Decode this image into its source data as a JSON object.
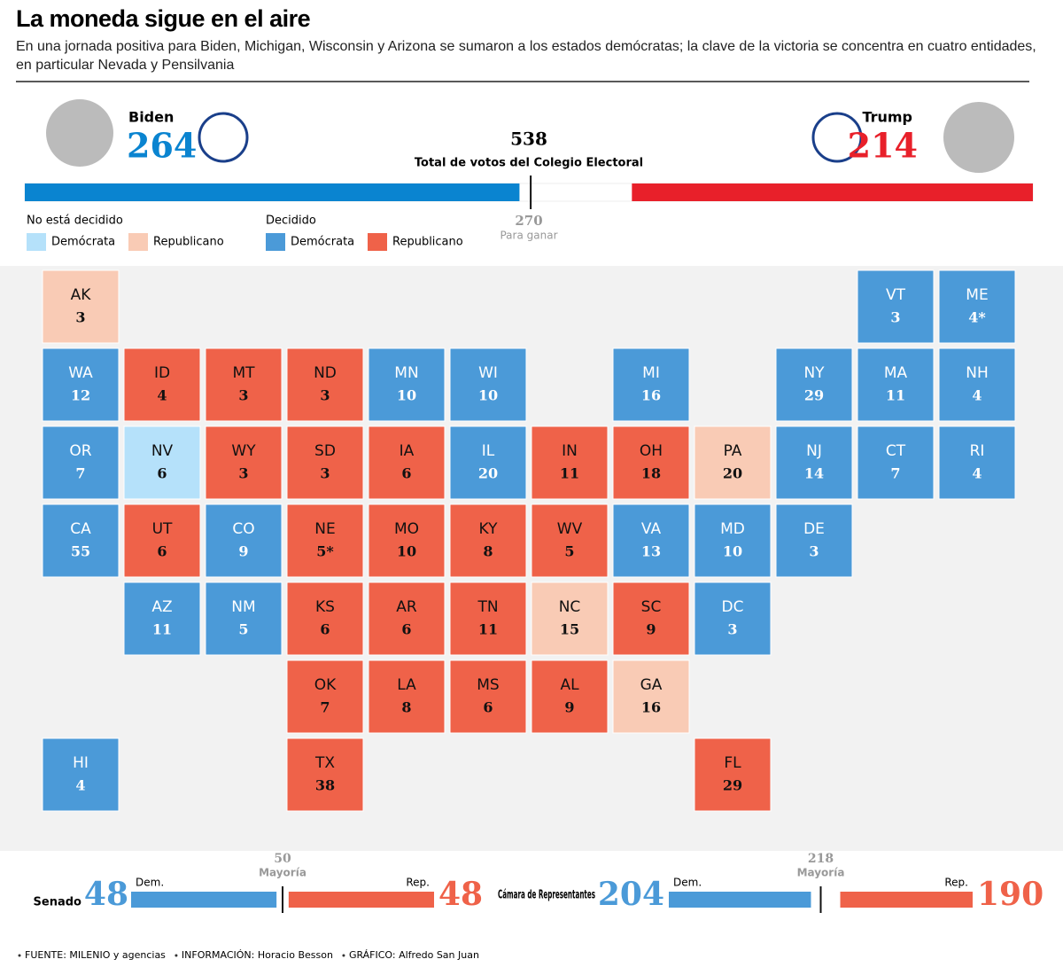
{
  "header": {
    "title": "La moneda sigue en el aire",
    "subtitle": "En una jornada positiva para Biden, Michigan, Wisconsin y Arizona se sumaron a los estados demócratas; la clave de la victoria se concentra en cuatro entidades, en particular Nevada y Pensilvania"
  },
  "electoral": {
    "biden": {
      "name": "Biden",
      "votes": 264,
      "color": "#0a84d0"
    },
    "trump": {
      "name": "Trump",
      "votes": 214,
      "color": "#e8202a"
    },
    "total": 538,
    "total_label": "Total de votos del Colegio Electoral",
    "to_win": 270,
    "to_win_label": "Para ganar"
  },
  "legend": {
    "groups": [
      {
        "title": "No está decidido",
        "items": [
          {
            "label": "Demócrata",
            "color": "#b5e1fa"
          },
          {
            "label": "Republicano",
            "color": "#f9cbb5"
          }
        ]
      },
      {
        "title": "Decidido",
        "items": [
          {
            "label": "Demócrata",
            "color": "#4b9ad8"
          },
          {
            "label": "Republicano",
            "color": "#ef6249"
          }
        ]
      }
    ]
  },
  "states": [
    {
      "abbr": "AK",
      "votes": 3,
      "color": "#f9cbb5"
    },
    {
      "abbr": "VT",
      "votes": 3,
      "color": "#4b9ad8"
    },
    {
      "abbr": "ME",
      "votes": "4*",
      "color": "#4b9ad8"
    },
    {
      "abbr": "WA",
      "votes": 12,
      "color": "#4b9ad8"
    },
    {
      "abbr": "ID",
      "votes": 4,
      "color": "#ef6249"
    },
    {
      "abbr": "MT",
      "votes": 3,
      "color": "#ef6249"
    },
    {
      "abbr": "ND",
      "votes": 3,
      "color": "#ef6249"
    },
    {
      "abbr": "MN",
      "votes": 10,
      "color": "#4b9ad8"
    },
    {
      "abbr": "WI",
      "votes": 10,
      "color": "#4b9ad8"
    },
    {
      "abbr": "MI",
      "votes": 16,
      "color": "#4b9ad8"
    },
    {
      "abbr": "NY",
      "votes": 29,
      "color": "#4b9ad8"
    },
    {
      "abbr": "MA",
      "votes": 11,
      "color": "#4b9ad8"
    },
    {
      "abbr": "NH",
      "votes": 4,
      "color": "#4b9ad8"
    },
    {
      "abbr": "OR",
      "votes": 7,
      "color": "#4b9ad8"
    },
    {
      "abbr": "NV",
      "votes": 6,
      "color": "#b5e1fa"
    },
    {
      "abbr": "WY",
      "votes": 3,
      "color": "#ef6249"
    },
    {
      "abbr": "SD",
      "votes": 3,
      "color": "#ef6249"
    },
    {
      "abbr": "IA",
      "votes": 6,
      "color": "#ef6249"
    },
    {
      "abbr": "IL",
      "votes": 20,
      "color": "#4b9ad8"
    },
    {
      "abbr": "IN",
      "votes": 11,
      "color": "#ef6249"
    },
    {
      "abbr": "OH",
      "votes": 18,
      "color": "#ef6249"
    },
    {
      "abbr": "PA",
      "votes": 20,
      "color": "#f9cbb5"
    },
    {
      "abbr": "NJ",
      "votes": 14,
      "color": "#4b9ad8"
    },
    {
      "abbr": "CT",
      "votes": 7,
      "color": "#4b9ad8"
    },
    {
      "abbr": "RI",
      "votes": 4,
      "color": "#4b9ad8"
    },
    {
      "abbr": "CA",
      "votes": 55,
      "color": "#4b9ad8"
    },
    {
      "abbr": "UT",
      "votes": 6,
      "color": "#ef6249"
    },
    {
      "abbr": "CO",
      "votes": 9,
      "color": "#4b9ad8"
    },
    {
      "abbr": "NE",
      "votes": "5*",
      "color": "#ef6249"
    },
    {
      "abbr": "MO",
      "votes": 10,
      "color": "#ef6249"
    },
    {
      "abbr": "KY",
      "votes": 8,
      "color": "#ef6249"
    },
    {
      "abbr": "WV",
      "votes": 5,
      "color": "#ef6249"
    },
    {
      "abbr": "VA",
      "votes": 13,
      "color": "#4b9ad8"
    },
    {
      "abbr": "MD",
      "votes": 10,
      "color": "#4b9ad8"
    },
    {
      "abbr": "DE",
      "votes": 3,
      "color": "#4b9ad8"
    },
    {
      "abbr": "AZ",
      "votes": 11,
      "color": "#4b9ad8"
    },
    {
      "abbr": "NM",
      "votes": 5,
      "color": "#4b9ad8"
    },
    {
      "abbr": "KS",
      "votes": 6,
      "color": "#ef6249"
    },
    {
      "abbr": "AR",
      "votes": 6,
      "color": "#ef6249"
    },
    {
      "abbr": "TN",
      "votes": 11,
      "color": "#ef6249"
    },
    {
      "abbr": "NC",
      "votes": 15,
      "color": "#f9cbb5"
    },
    {
      "abbr": "SC",
      "votes": 9,
      "color": "#ef6249"
    },
    {
      "abbr": "DC",
      "votes": 3,
      "color": "#4b9ad8"
    },
    {
      "abbr": "OK",
      "votes": 7,
      "color": "#ef6249"
    },
    {
      "abbr": "LA",
      "votes": 8,
      "color": "#ef6249"
    },
    {
      "abbr": "MS",
      "votes": 6,
      "color": "#ef6249"
    },
    {
      "abbr": "AL",
      "votes": 9,
      "color": "#ef6249"
    },
    {
      "abbr": "GA",
      "votes": 16,
      "color": "#f9cbb5"
    },
    {
      "abbr": "HI",
      "votes": 4,
      "color": "#4b9ad8"
    },
    {
      "abbr": "TX",
      "votes": 38,
      "color": "#ef6249"
    },
    {
      "abbr": "FL",
      "votes": 29,
      "color": "#ef6249"
    }
  ],
  "congress": [
    {
      "title": "Senado",
      "dem": 48,
      "dem_label": "Dem.",
      "rep": 48,
      "rep_label": "Rep.",
      "majority": 50,
      "majority_label": "Mayoría"
    },
    {
      "title": "Cámara de Representantes",
      "dem": 204,
      "dem_label": "Dem.",
      "rep": 190,
      "rep_label": "Rep.",
      "majority": 218,
      "majority_label": "Mayoría"
    }
  ],
  "footer": [
    "FUENTE: MILENIO y agencias",
    "INFORMACIÓN: Horacio Besson",
    "GRÁFICO: Alfredo San Juan"
  ]
}
